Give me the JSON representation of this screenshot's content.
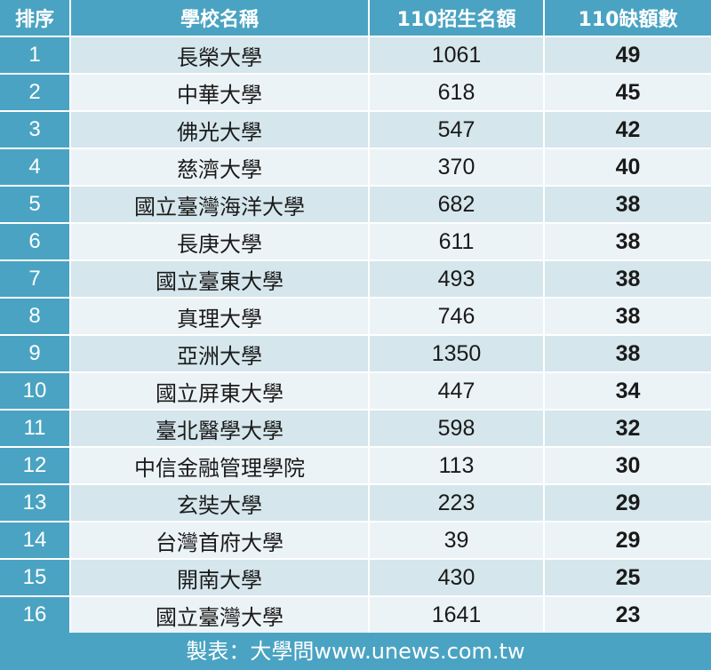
{
  "header": {
    "rank": "排序",
    "name": "學校名稱",
    "quota": "110招生名額",
    "shortage": "110缺額數"
  },
  "rows": [
    {
      "rank": "1",
      "name": "長榮大學",
      "quota": "1061",
      "shortage": "49"
    },
    {
      "rank": "2",
      "name": "中華大學",
      "quota": "618",
      "shortage": "45"
    },
    {
      "rank": "3",
      "name": "佛光大學",
      "quota": "547",
      "shortage": "42"
    },
    {
      "rank": "4",
      "name": "慈濟大學",
      "quota": "370",
      "shortage": "40"
    },
    {
      "rank": "5",
      "name": "國立臺灣海洋大學",
      "quota": "682",
      "shortage": "38"
    },
    {
      "rank": "6",
      "name": "長庚大學",
      "quota": "611",
      "shortage": "38"
    },
    {
      "rank": "7",
      "name": "國立臺東大學",
      "quota": "493",
      "shortage": "38"
    },
    {
      "rank": "8",
      "name": "真理大學",
      "quota": "746",
      "shortage": "38"
    },
    {
      "rank": "9",
      "name": "亞洲大學",
      "quota": "1350",
      "shortage": "38"
    },
    {
      "rank": "10",
      "name": "國立屏東大學",
      "quota": "447",
      "shortage": "34"
    },
    {
      "rank": "11",
      "name": "臺北醫學大學",
      "quota": "598",
      "shortage": "32"
    },
    {
      "rank": "12",
      "name": "中信金融管理學院",
      "quota": "113",
      "shortage": "30"
    },
    {
      "rank": "13",
      "name": "玄奘大學",
      "quota": "223",
      "shortage": "29"
    },
    {
      "rank": "14",
      "name": "台灣首府大學",
      "quota": "39",
      "shortage": "29"
    },
    {
      "rank": "15",
      "name": "開南大學",
      "quota": "430",
      "shortage": "25"
    },
    {
      "rank": "16",
      "name": "國立臺灣大學",
      "quota": "1641",
      "shortage": "23"
    }
  ],
  "footer": "製表：大學問www.unews.com.tw",
  "colors": {
    "header_bg": "#4aa3c2",
    "row_odd": "#d5e6ec",
    "row_even": "#ecf3f6"
  }
}
